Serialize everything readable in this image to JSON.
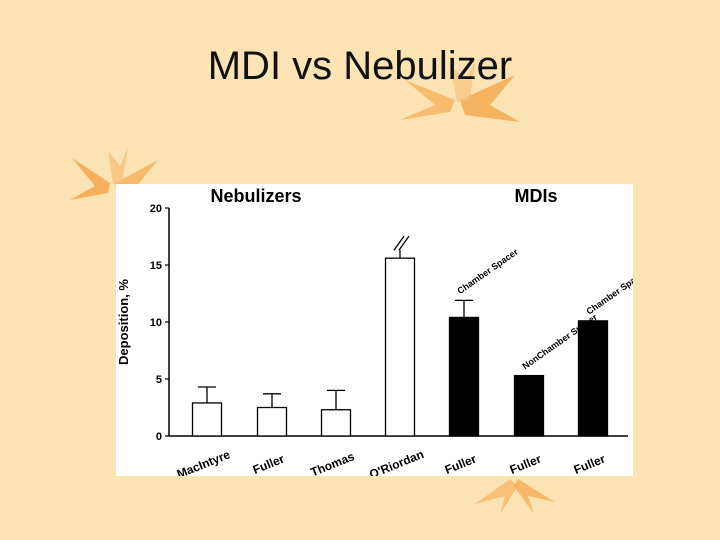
{
  "slide": {
    "title": "MDI vs Nebulizer"
  },
  "colors": {
    "background": "#fbe3b4",
    "leaf": "#f4a64a",
    "bar_open": "#ffffff",
    "bar_filled": "#000000"
  },
  "chart_data": {
    "type": "bar",
    "title": "",
    "group_labels": [
      "Nebulizers",
      "MDIs"
    ],
    "ylabel": "Deposition, %",
    "xlabel": "",
    "ylim": [
      0,
      20
    ],
    "yticks": [
      0,
      5,
      10,
      15,
      20
    ],
    "grid": false,
    "categories": [
      "MacIntyre",
      "Fuller",
      "Thomas",
      "O'Riordan",
      "Fuller",
      "Fuller",
      "Fuller"
    ],
    "values": [
      2.9,
      2.5,
      2.3,
      15.6,
      10.4,
      5.3,
      10.1
    ],
    "error_upper": [
      4.3,
      3.7,
      4.0,
      null,
      11.9,
      null,
      null
    ],
    "fill": [
      "open",
      "open",
      "open",
      "open",
      "filled",
      "filled",
      "filled"
    ],
    "broken_bar_index": 3,
    "annotations": [
      {
        "bar_index": 4,
        "text": "Chamber Spacer"
      },
      {
        "bar_index": 5,
        "text": "NonChamber Spacer"
      },
      {
        "bar_index": 6,
        "text": "Chamber Spacer"
      }
    ]
  }
}
